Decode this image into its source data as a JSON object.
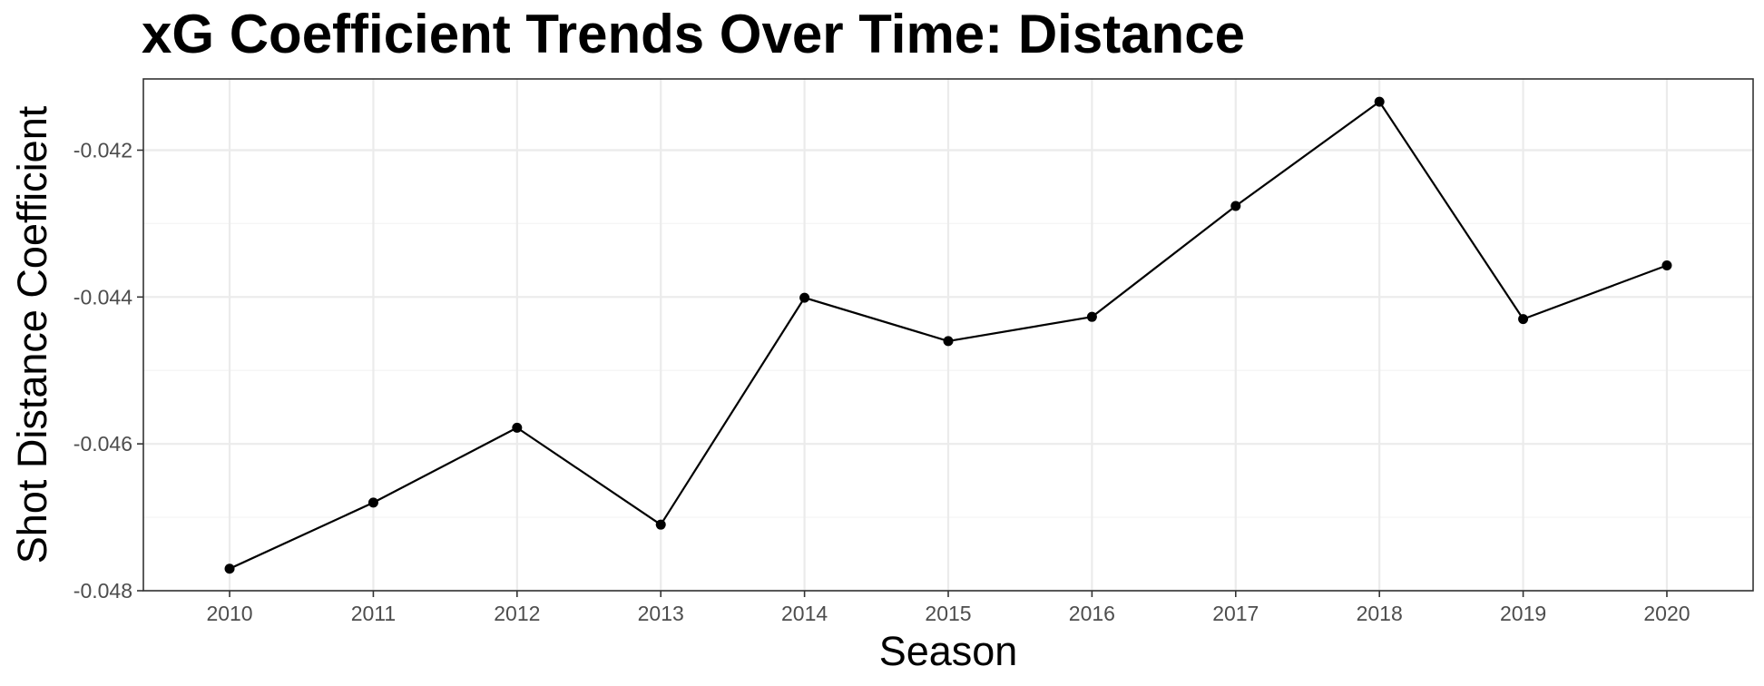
{
  "chart_data": {
    "type": "line",
    "title": "xG Coefficient Trends Over Time: Distance",
    "xlabel": "Season",
    "ylabel": "Shot Distance Coefficient",
    "x": [
      2010,
      2011,
      2012,
      2013,
      2014,
      2015,
      2016,
      2017,
      2018,
      2019,
      2020
    ],
    "series": [
      {
        "values": [
          -0.0477,
          -0.0468,
          -0.04578,
          -0.0471,
          -0.04401,
          -0.0446,
          -0.04427,
          -0.04276,
          -0.04134,
          -0.0443,
          -0.04357
        ]
      }
    ],
    "x_ticks": [
      "2010",
      "2011",
      "2012",
      "2013",
      "2014",
      "2015",
      "2016",
      "2017",
      "2018",
      "2019",
      "2020"
    ],
    "y_ticks": [
      {
        "value": -0.048,
        "label": "-0.048"
      },
      {
        "value": -0.046,
        "label": "-0.046"
      },
      {
        "value": -0.044,
        "label": "-0.044"
      },
      {
        "value": -0.042,
        "label": "-0.042"
      }
    ],
    "xlim": [
      2009.4,
      2020.6
    ],
    "ylim": [
      -0.048,
      -0.04103
    ],
    "grid": true,
    "colors": {
      "line": "#000000",
      "point": "#000000",
      "grid_major": "#ebebeb",
      "grid_minor": "#f5f5f5",
      "panel_border": "#333333",
      "tick_text": "#4d4d4d"
    }
  }
}
